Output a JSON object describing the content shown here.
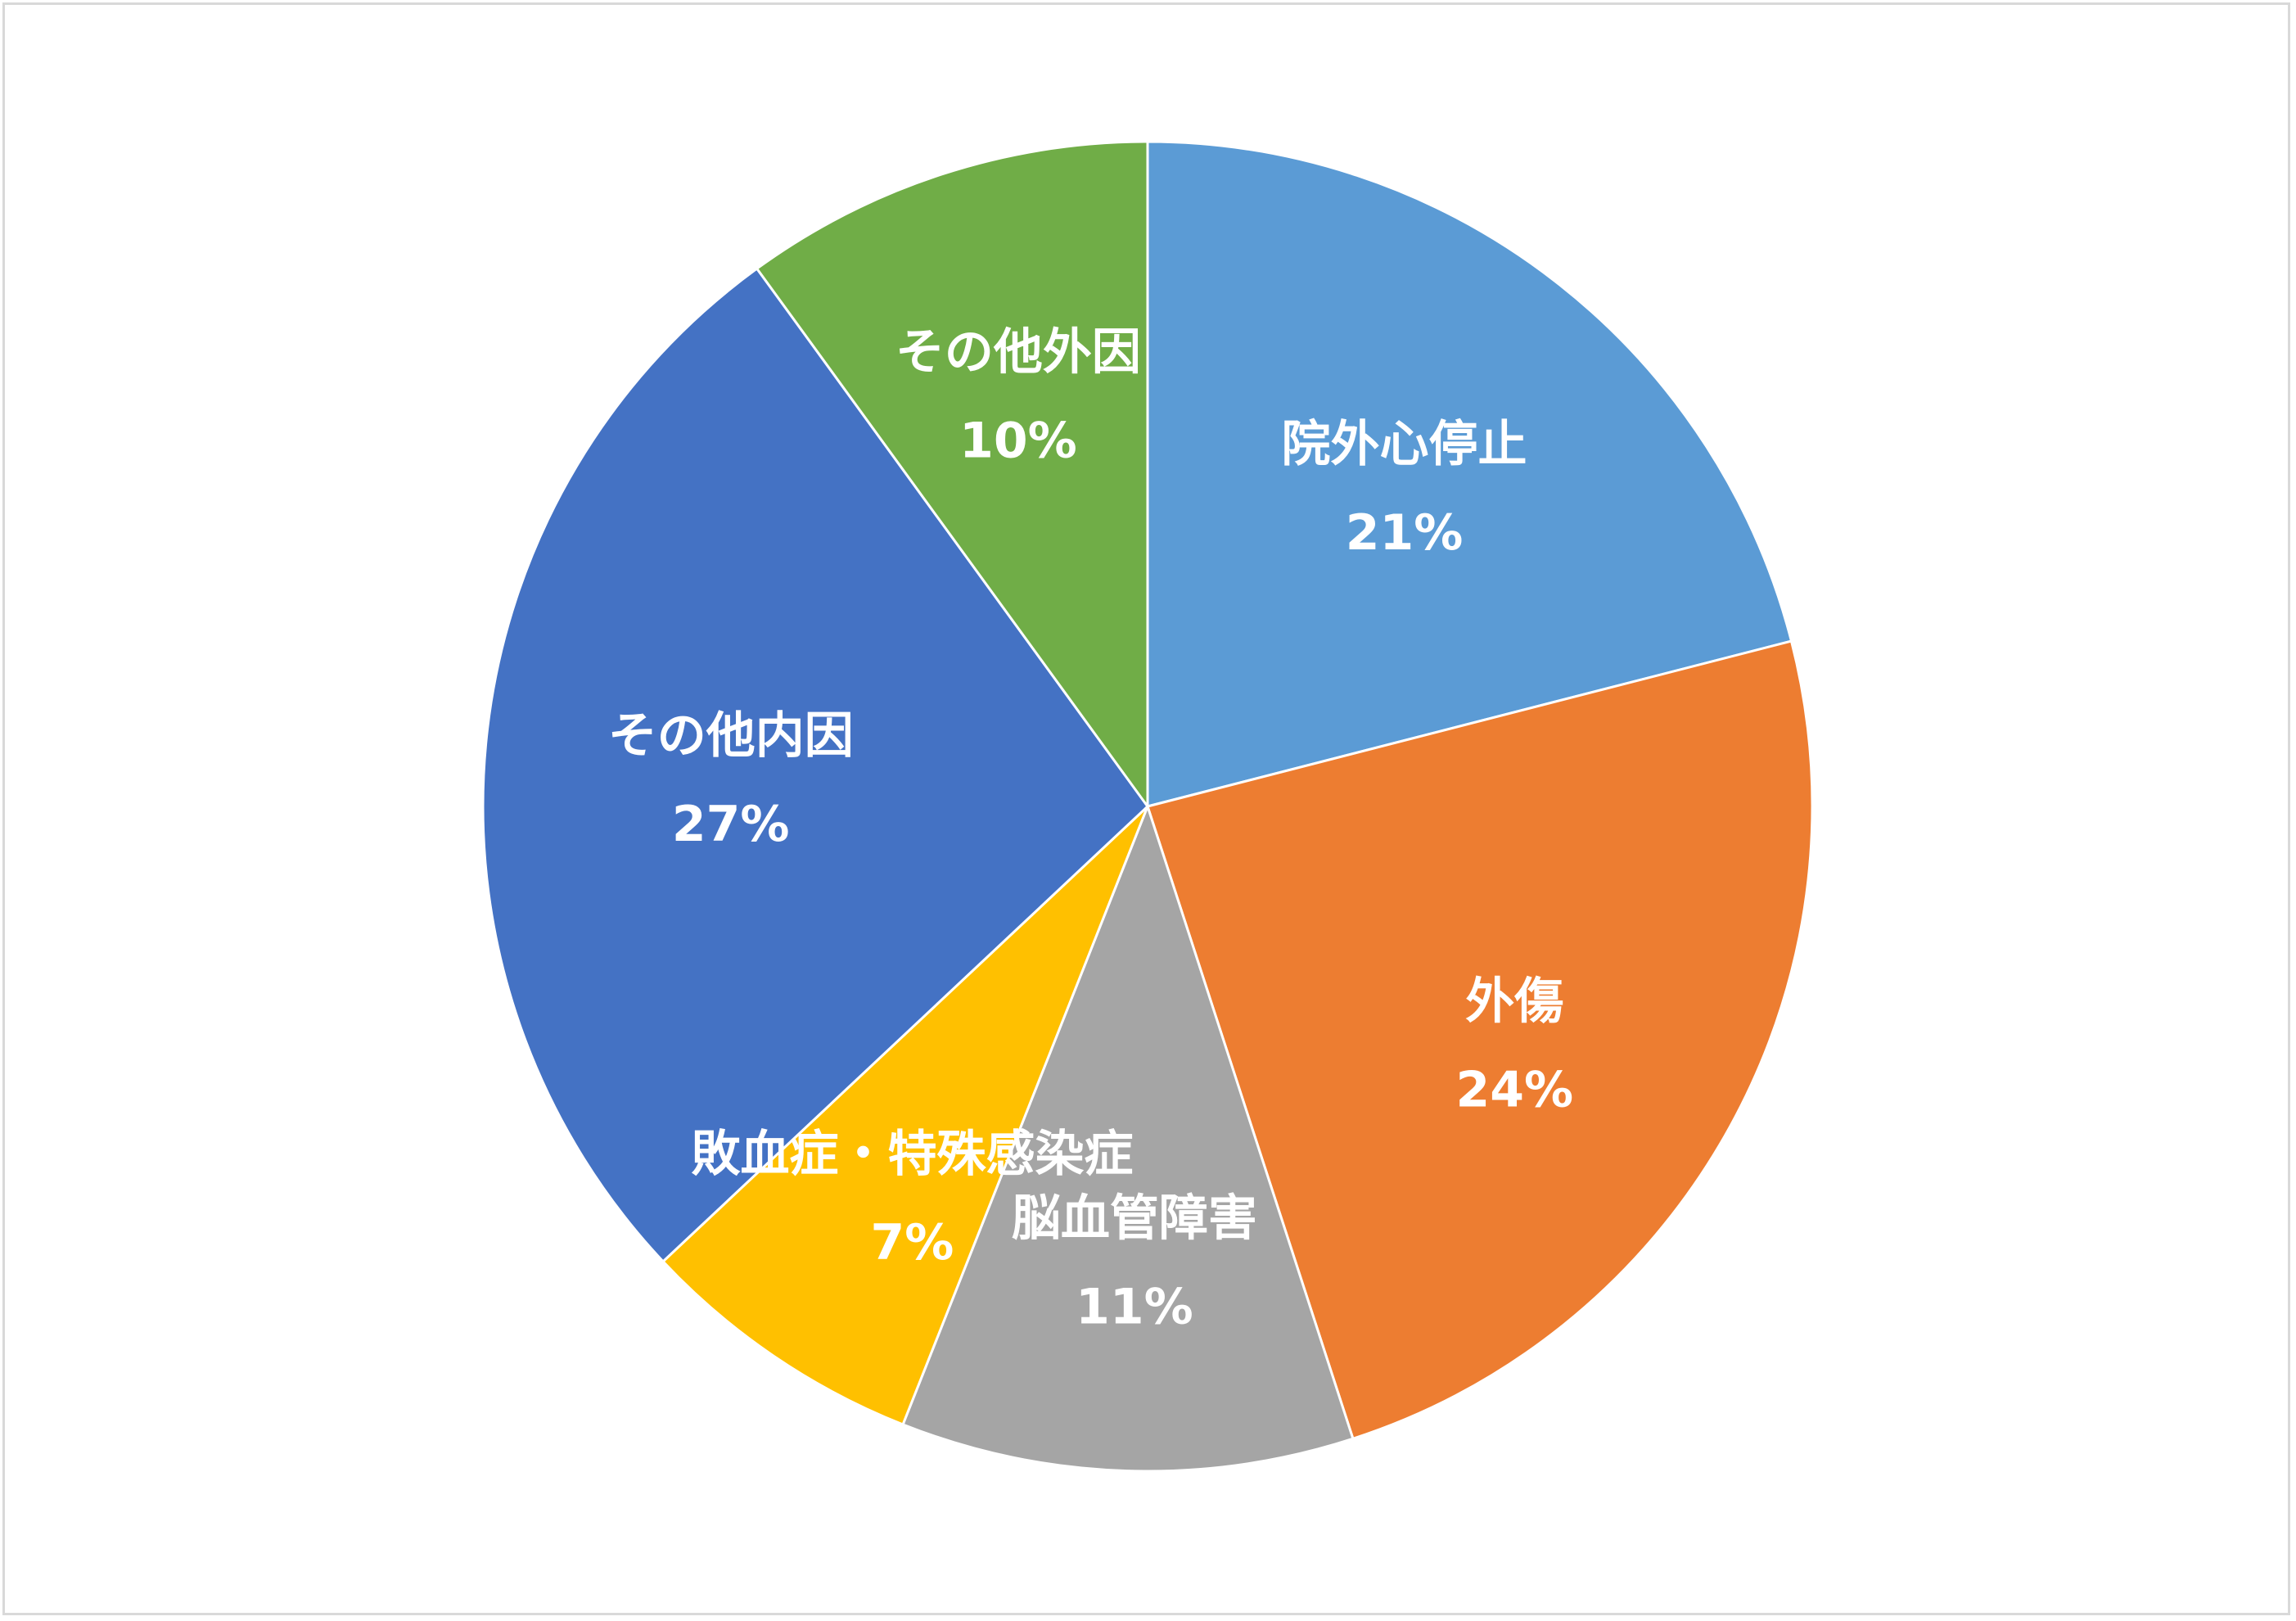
{
  "chart_data": {
    "type": "pie",
    "start_angle": "12 o'clock",
    "direction": "clockwise",
    "legend": "none",
    "slices": [
      {
        "name": "院外心停止",
        "value": 21,
        "label": "21%",
        "color": "#5b9bd5"
      },
      {
        "name": "外傷",
        "value": 24,
        "label": "24%",
        "color": "#ed7d31"
      },
      {
        "name": "脳血管障害",
        "value": 11,
        "label": "11%",
        "color": "#a5a5a5"
      },
      {
        "name": "敗血症・特殊感染症",
        "value": 7,
        "label": "7%",
        "color": "#ffc000"
      },
      {
        "name": "その他内因",
        "value": 27,
        "label": "27%",
        "color": "#4472c4"
      },
      {
        "name": "その他外因",
        "value": 10,
        "label": "10%",
        "color": "#70ad47"
      }
    ]
  }
}
